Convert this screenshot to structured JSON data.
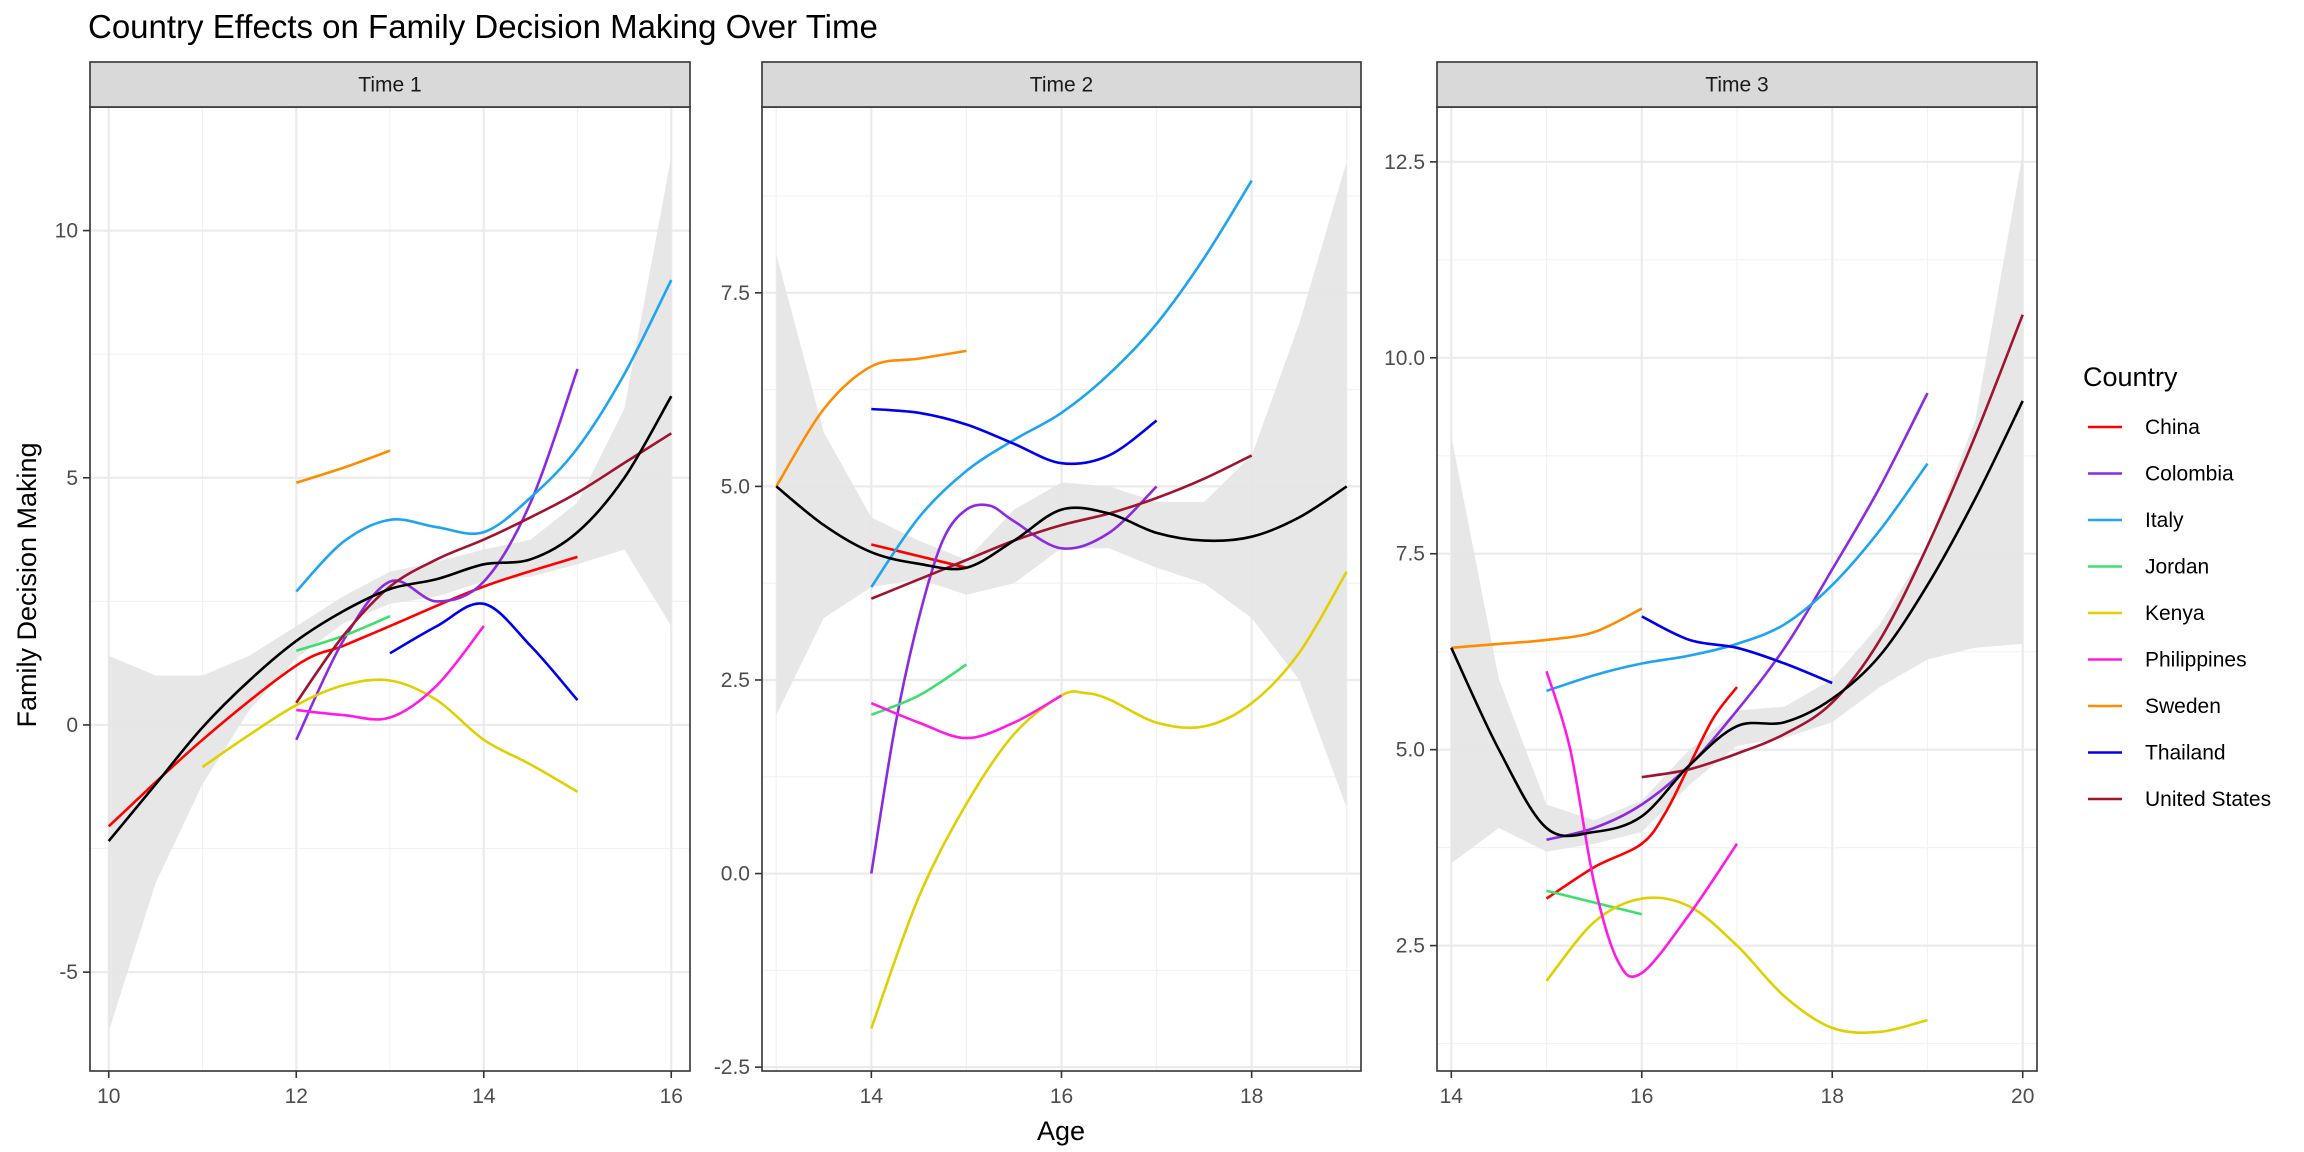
{
  "chart_data": {
    "type": "line",
    "title": "Country Effects on Family Decision Making Over Time",
    "xlabel": "Age",
    "ylabel": "Family Decision Making",
    "legend": {
      "title": "Country",
      "position": "right"
    },
    "colors": {
      "China": "#ff0000",
      "Colombia": "#8a2be2",
      "Italy": "#1ea4f0",
      "Jordan": "#3de06e",
      "Kenya": "#e0d000",
      "Philippines": "#ff1ae6",
      "Sweden": "#ff8c00",
      "Thailand": "#0000ee",
      "United States": "#a01430",
      "Overall": "#000000",
      "Confidence band": "#e6e6e6"
    },
    "countries": [
      "China",
      "Colombia",
      "Italy",
      "Jordan",
      "Kenya",
      "Philippines",
      "Sweden",
      "Thailand",
      "United States"
    ],
    "panels": [
      {
        "label": "Time 1",
        "xlim": [
          9.8,
          16.2
        ],
        "ylim": [
          -7.0,
          12.5
        ],
        "xticks": [
          10,
          12,
          14,
          16
        ],
        "yticks": [
          -5,
          0,
          5,
          10
        ],
        "ytick_labels": [
          "-5",
          "0",
          "5",
          "10"
        ],
        "series": [
          {
            "name": "China",
            "x": [
              10,
              11,
              12,
              12.5,
              13,
              14,
              15
            ],
            "y": [
              -2.05,
              -0.3,
              1.2,
              1.6,
              2.0,
              2.8,
              3.4
            ]
          },
          {
            "name": "Colombia",
            "x": [
              12,
              12.5,
              13,
              13.5,
              14,
              14.5,
              15
            ],
            "y": [
              -0.3,
              1.7,
              2.9,
              2.5,
              2.9,
              4.5,
              7.2
            ]
          },
          {
            "name": "Italy",
            "x": [
              12,
              12.5,
              13,
              13.5,
              14,
              14.5,
              15,
              15.5,
              16
            ],
            "y": [
              2.7,
              3.7,
              4.15,
              4.0,
              3.9,
              4.6,
              5.6,
              7.1,
              9.0
            ]
          },
          {
            "name": "Jordan",
            "x": [
              12,
              12.5,
              13
            ],
            "y": [
              1.5,
              1.8,
              2.2
            ]
          },
          {
            "name": "Kenya",
            "x": [
              11,
              11.5,
              12,
              12.5,
              13,
              13.5,
              14,
              14.5,
              15
            ],
            "y": [
              -0.85,
              -0.2,
              0.4,
              0.8,
              0.9,
              0.5,
              -0.3,
              -0.8,
              -1.35
            ]
          },
          {
            "name": "Philippines",
            "x": [
              12,
              12.5,
              13,
              13.5,
              14
            ],
            "y": [
              0.3,
              0.2,
              0.15,
              0.8,
              2.0
            ]
          },
          {
            "name": "Sweden",
            "x": [
              12,
              12.5,
              13
            ],
            "y": [
              4.9,
              5.2,
              5.55
            ]
          },
          {
            "name": "Thailand",
            "x": [
              13,
              13.5,
              14,
              14.5,
              15
            ],
            "y": [
              1.45,
              2.0,
              2.45,
              1.6,
              0.5
            ]
          },
          {
            "name": "United States",
            "x": [
              12,
              12.5,
              13,
              13.5,
              14,
              14.5,
              15,
              15.5,
              16
            ],
            "y": [
              0.45,
              1.8,
              2.8,
              3.35,
              3.75,
              4.2,
              4.7,
              5.3,
              5.9
            ]
          },
          {
            "name": "Overall",
            "x": [
              10,
              10.5,
              11,
              11.5,
              12,
              12.5,
              13,
              13.5,
              14,
              14.5,
              15,
              15.5,
              16
            ],
            "y": [
              -2.35,
              -1.2,
              -0.05,
              0.9,
              1.7,
              2.3,
              2.75,
              2.95,
              3.25,
              3.35,
              3.9,
              5.0,
              6.65
            ]
          }
        ],
        "band": {
          "x": [
            10,
            10.5,
            11,
            11.5,
            12,
            12.5,
            13,
            13.5,
            14,
            14.5,
            15,
            15.5,
            16
          ],
          "upper": [
            1.4,
            1.0,
            1.0,
            1.4,
            2.0,
            2.6,
            3.1,
            3.3,
            3.55,
            3.75,
            4.5,
            6.4,
            11.5
          ],
          "lower": [
            -6.2,
            -3.2,
            -1.2,
            0.3,
            1.35,
            2.05,
            2.45,
            2.6,
            2.9,
            3.0,
            3.25,
            3.55,
            2.0
          ]
        }
      },
      {
        "label": "Time 2",
        "xlim": [
          12.85,
          19.15
        ],
        "ylim": [
          -2.55,
          9.9
        ],
        "xticks": [
          14,
          16,
          18
        ],
        "yticks": [
          -2.5,
          0,
          2.5,
          5,
          7.5
        ],
        "ytick_labels": [
          "-2.5",
          "0.0",
          "2.5",
          "5.0",
          "7.5"
        ],
        "series": [
          {
            "name": "China",
            "x": [
              14,
              14.5,
              15
            ],
            "y": [
              4.25,
              4.1,
              3.95
            ]
          },
          {
            "name": "Colombia",
            "x": [
              14,
              14.25,
              14.5,
              14.75,
              15,
              15.25,
              15.5,
              16,
              16.5,
              17
            ],
            "y": [
              0.0,
              1.9,
              3.3,
              4.3,
              4.7,
              4.75,
              4.55,
              4.2,
              4.4,
              5.0
            ]
          },
          {
            "name": "Italy",
            "x": [
              14,
              14.5,
              15,
              15.5,
              16,
              16.5,
              17,
              17.5,
              18
            ],
            "y": [
              3.7,
              4.6,
              5.2,
              5.6,
              5.95,
              6.45,
              7.1,
              7.95,
              8.95
            ]
          },
          {
            "name": "Jordan",
            "x": [
              14,
              14.5,
              15
            ],
            "y": [
              2.05,
              2.3,
              2.7
            ]
          },
          {
            "name": "Kenya",
            "x": [
              14,
              14.5,
              15,
              15.5,
              16,
              16.25,
              16.5,
              17,
              17.5,
              18,
              18.5,
              19
            ],
            "y": [
              -2.0,
              -0.3,
              0.9,
              1.8,
              2.3,
              2.33,
              2.25,
              1.95,
              1.9,
              2.2,
              2.85,
              3.9
            ]
          },
          {
            "name": "Philippines",
            "x": [
              14,
              14.5,
              15,
              15.5,
              16
            ],
            "y": [
              2.2,
              1.95,
              1.75,
              1.95,
              2.3
            ]
          },
          {
            "name": "Sweden",
            "x": [
              13,
              13.5,
              14,
              14.5,
              15
            ],
            "y": [
              5.0,
              6.0,
              6.55,
              6.65,
              6.75
            ]
          },
          {
            "name": "Thailand",
            "x": [
              14,
              14.5,
              15,
              15.5,
              16,
              16.5,
              17
            ],
            "y": [
              6.0,
              5.95,
              5.8,
              5.55,
              5.3,
              5.4,
              5.85
            ]
          },
          {
            "name": "United States",
            "x": [
              14,
              14.5,
              15,
              15.5,
              16,
              16.5,
              17,
              17.5,
              18
            ],
            "y": [
              3.55,
              3.8,
              4.05,
              4.3,
              4.5,
              4.65,
              4.85,
              5.1,
              5.4
            ]
          },
          {
            "name": "Overall",
            "x": [
              13,
              13.5,
              14,
              14.5,
              15,
              15.5,
              16,
              16.5,
              17,
              17.5,
              18,
              18.5,
              19
            ],
            "y": [
              5.0,
              4.5,
              4.15,
              4.0,
              3.95,
              4.3,
              4.7,
              4.65,
              4.4,
              4.3,
              4.35,
              4.6,
              5.0
            ]
          }
        ],
        "band": {
          "x": [
            13,
            13.5,
            14,
            14.5,
            15,
            15.5,
            16,
            16.5,
            17,
            17.5,
            18,
            18.5,
            19
          ],
          "upper": [
            8.0,
            5.7,
            4.6,
            4.3,
            4.05,
            4.7,
            5.05,
            5.0,
            4.8,
            4.8,
            5.4,
            7.1,
            9.2
          ],
          "lower": [
            2.05,
            3.3,
            3.7,
            3.8,
            3.6,
            3.75,
            4.2,
            4.2,
            3.95,
            3.75,
            3.3,
            2.5,
            0.85
          ]
        }
      },
      {
        "label": "Time 3",
        "xlim": [
          13.85,
          20.15
        ],
        "ylim": [
          0.9,
          13.2
        ],
        "xticks": [
          14,
          16,
          18,
          20
        ],
        "yticks": [
          2.5,
          5,
          7.5,
          10,
          12.5
        ],
        "ytick_labels": [
          "2.5",
          "5.0",
          "7.5",
          "10.0",
          "12.5"
        ],
        "series": [
          {
            "name": "China",
            "x": [
              15,
              15.5,
              16,
              16.25,
              16.5,
              16.75,
              17
            ],
            "y": [
              3.1,
              3.5,
              3.8,
              4.2,
              4.8,
              5.4,
              5.8
            ]
          },
          {
            "name": "Colombia",
            "x": [
              15,
              15.5,
              16,
              16.5,
              17,
              17.5,
              18,
              18.5,
              19
            ],
            "y": [
              3.85,
              4.0,
              4.3,
              4.8,
              5.5,
              6.3,
              7.3,
              8.35,
              9.55
            ]
          },
          {
            "name": "Italy",
            "x": [
              15,
              15.5,
              16,
              16.5,
              17,
              17.5,
              18,
              18.5,
              19
            ],
            "y": [
              5.75,
              5.95,
              6.1,
              6.2,
              6.35,
              6.6,
              7.1,
              7.8,
              8.65
            ]
          },
          {
            "name": "Jordan",
            "x": [
              15,
              15.5,
              16
            ],
            "y": [
              3.2,
              3.05,
              2.9
            ]
          },
          {
            "name": "Kenya",
            "x": [
              15,
              15.5,
              16,
              16.5,
              17,
              17.5,
              18,
              18.5,
              19
            ],
            "y": [
              2.05,
              2.8,
              3.1,
              3.0,
              2.5,
              1.85,
              1.45,
              1.4,
              1.55
            ]
          },
          {
            "name": "Philippines",
            "x": [
              15,
              15.25,
              15.5,
              15.75,
              16,
              16.5,
              17
            ],
            "y": [
              6.0,
              5.0,
              3.3,
              2.3,
              2.15,
              2.9,
              3.8
            ]
          },
          {
            "name": "Sweden",
            "x": [
              14,
              14.5,
              15,
              15.5,
              16
            ],
            "y": [
              6.3,
              6.35,
              6.4,
              6.5,
              6.8
            ]
          },
          {
            "name": "Thailand",
            "x": [
              16,
              16.5,
              17,
              17.5,
              18
            ],
            "y": [
              6.7,
              6.4,
              6.3,
              6.1,
              5.85
            ]
          },
          {
            "name": "United States",
            "x": [
              16,
              16.5,
              17,
              17.5,
              18,
              18.5,
              19,
              19.5,
              20
            ],
            "y": [
              4.65,
              4.75,
              4.95,
              5.2,
              5.6,
              6.4,
              7.6,
              9.0,
              10.55
            ]
          },
          {
            "name": "Overall",
            "x": [
              14,
              14.5,
              15,
              15.5,
              16,
              16.5,
              17,
              17.5,
              18,
              18.5,
              19,
              19.5,
              20
            ],
            "y": [
              6.3,
              5.0,
              4.0,
              3.95,
              4.15,
              4.8,
              5.3,
              5.35,
              5.65,
              6.2,
              7.1,
              8.2,
              9.45
            ]
          }
        ],
        "band": {
          "x": [
            14,
            14.5,
            15,
            15.5,
            16,
            16.5,
            17,
            17.5,
            18,
            18.5,
            19,
            19.5,
            20
          ],
          "upper": [
            9.0,
            5.9,
            4.3,
            4.1,
            4.35,
            5.0,
            5.5,
            5.55,
            5.9,
            6.6,
            7.6,
            9.2,
            12.6
          ],
          "lower": [
            3.55,
            4.0,
            3.7,
            3.8,
            3.95,
            4.55,
            5.05,
            5.15,
            5.35,
            5.8,
            6.15,
            6.3,
            6.35
          ]
        }
      }
    ]
  }
}
